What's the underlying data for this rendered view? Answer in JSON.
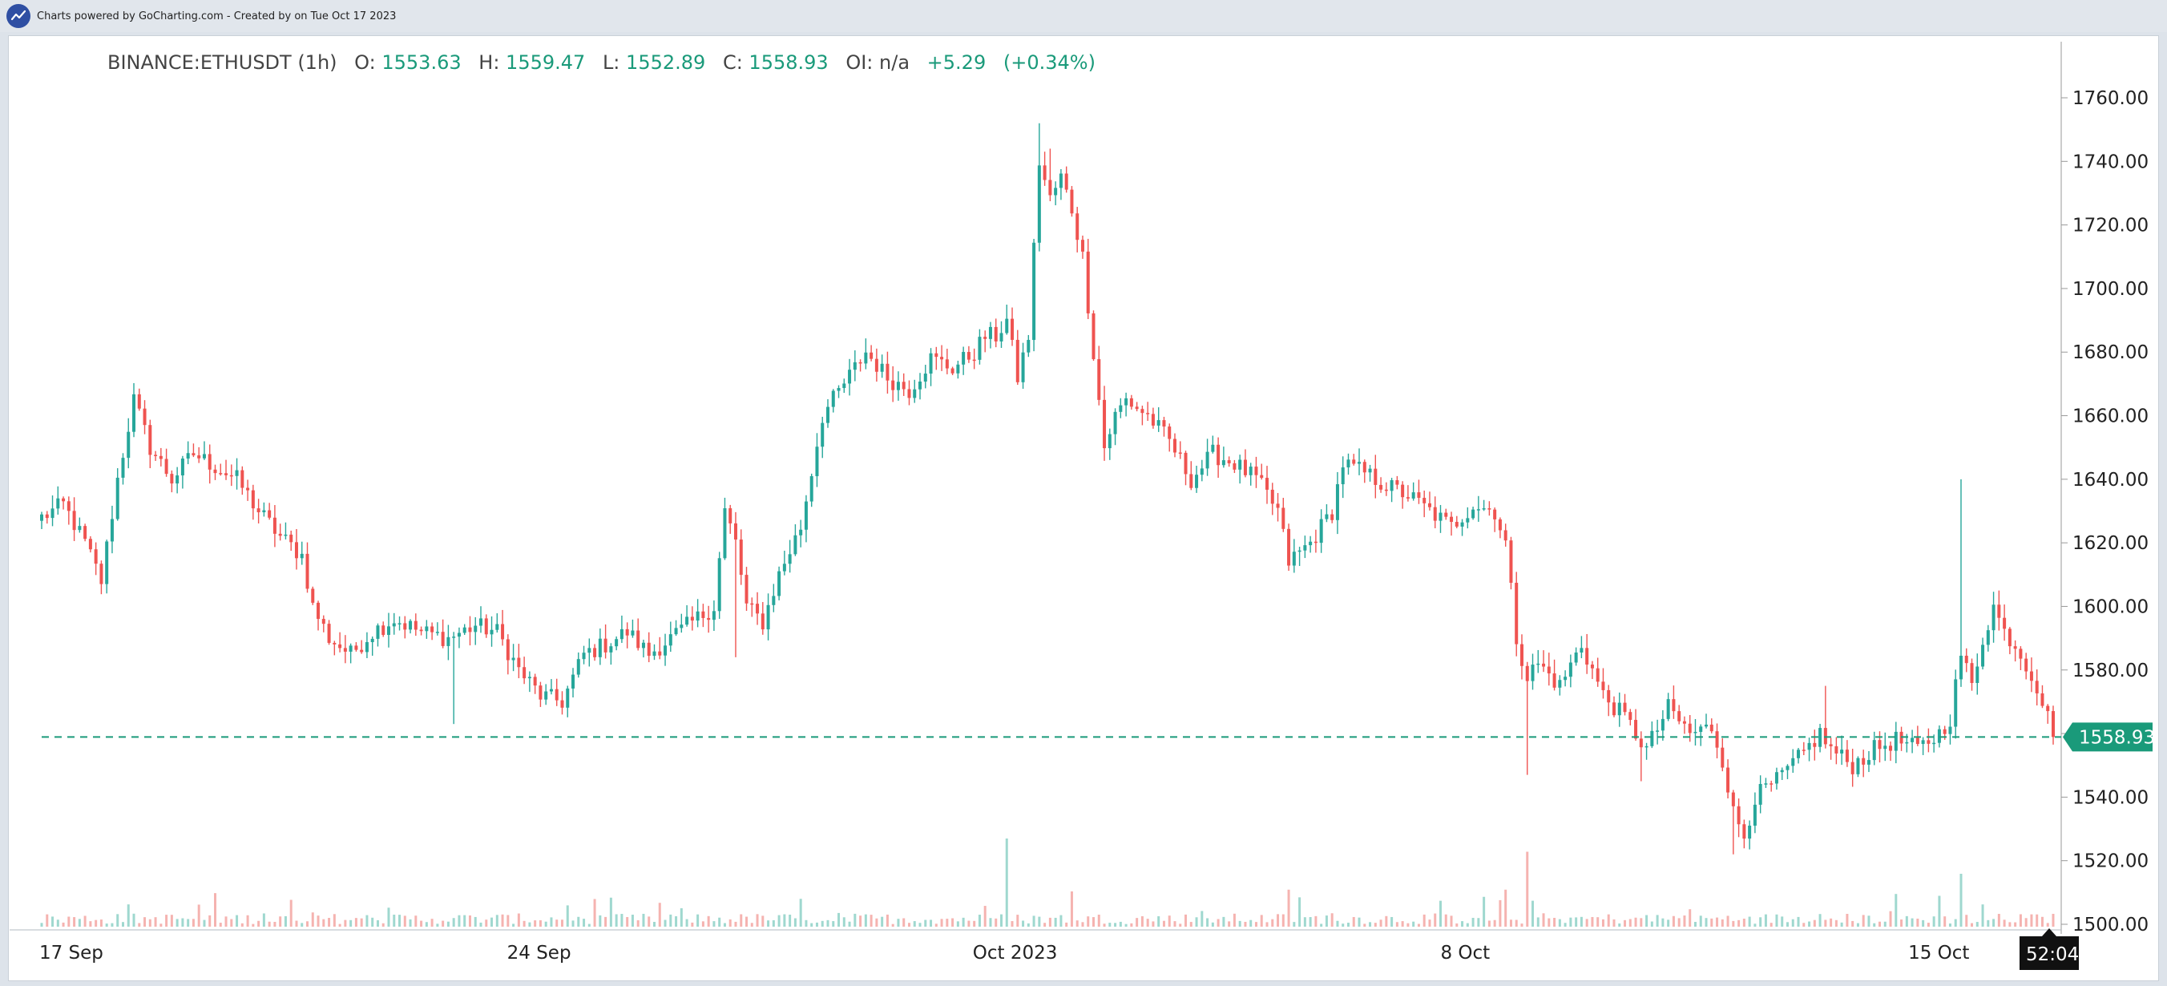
{
  "header": {
    "credit_text": "Charts powered by GoCharting.com - Created by  on Tue Oct 17 2023",
    "logo_icon": "trend-line-icon"
  },
  "legend": {
    "symbol": "BINANCE:ETHUSDT (1h)",
    "open_label": "O:",
    "open": "1553.63",
    "high_label": "H:",
    "high": "1559.47",
    "low_label": "L:",
    "low": "1552.89",
    "close_label": "C:",
    "close": "1558.93",
    "oi_label": "OI:",
    "oi": "n/a",
    "change": "+5.29",
    "change_pct": "(+0.34%)"
  },
  "chart_data": {
    "type": "candlestick",
    "title": "",
    "xlabel": "",
    "ylabel": "",
    "ylim": [
      1498,
      1772
    ],
    "y_ticks": [
      "1500.00",
      "1520.00",
      "1540.00",
      "1560.00",
      "1580.00",
      "1600.00",
      "1620.00",
      "1640.00",
      "1660.00",
      "1680.00",
      "1700.00",
      "1720.00",
      "1740.00",
      "1760.00"
    ],
    "x_ticks": [
      {
        "label": "17 Sep",
        "pos": 0.016
      },
      {
        "label": "24 Sep",
        "pos": 0.244
      },
      {
        "label": "Oct 2023",
        "pos": 0.471
      },
      {
        "label": "8 Oct",
        "pos": 0.699
      },
      {
        "label": "15 Oct",
        "pos": 0.927
      }
    ],
    "last_price": 1558.93,
    "last_price_label": "1558.93",
    "countdown": "52:04",
    "colors": {
      "up": "#26a69a",
      "down": "#ef5350",
      "up_volume": "#9fd8cf",
      "down_volume": "#f5b3b0"
    },
    "close_path": [
      [
        0,
        1628
      ],
      [
        4,
        1632
      ],
      [
        8,
        1620
      ],
      [
        11,
        1608
      ],
      [
        14,
        1640
      ],
      [
        17,
        1665
      ],
      [
        20,
        1650
      ],
      [
        24,
        1640
      ],
      [
        28,
        1648
      ],
      [
        32,
        1644
      ],
      [
        36,
        1640
      ],
      [
        40,
        1630
      ],
      [
        44,
        1622
      ],
      [
        48,
        1616
      ],
      [
        50,
        1600
      ],
      [
        53,
        1590
      ],
      [
        57,
        1585
      ],
      [
        61,
        1592
      ],
      [
        65,
        1596
      ],
      [
        70,
        1592
      ],
      [
        75,
        1590
      ],
      [
        80,
        1594
      ],
      [
        84,
        1592
      ],
      [
        88,
        1580
      ],
      [
        92,
        1572
      ],
      [
        96,
        1570
      ],
      [
        100,
        1585
      ],
      [
        104,
        1588
      ],
      [
        108,
        1592
      ],
      [
        112,
        1585
      ],
      [
        116,
        1590
      ],
      [
        120,
        1595
      ],
      [
        124,
        1600
      ],
      [
        126,
        1630
      ],
      [
        128,
        1620
      ],
      [
        130,
        1600
      ],
      [
        133,
        1595
      ],
      [
        136,
        1610
      ],
      [
        140,
        1625
      ],
      [
        144,
        1660
      ],
      [
        148,
        1670
      ],
      [
        152,
        1680
      ],
      [
        156,
        1672
      ],
      [
        160,
        1668
      ],
      [
        164,
        1678
      ],
      [
        168,
        1675
      ],
      [
        172,
        1680
      ],
      [
        174,
        1685
      ],
      [
        176,
        1685
      ],
      [
        178,
        1690
      ],
      [
        180,
        1672
      ],
      [
        182,
        1685
      ],
      [
        184,
        1740
      ],
      [
        186,
        1728
      ],
      [
        188,
        1735
      ],
      [
        190,
        1725
      ],
      [
        192,
        1710
      ],
      [
        194,
        1680
      ],
      [
        196,
        1650
      ],
      [
        198,
        1660
      ],
      [
        200,
        1665
      ],
      [
        204,
        1660
      ],
      [
        208,
        1652
      ],
      [
        212,
        1640
      ],
      [
        216,
        1648
      ],
      [
        220,
        1645
      ],
      [
        224,
        1640
      ],
      [
        228,
        1630
      ],
      [
        230,
        1614
      ],
      [
        234,
        1620
      ],
      [
        238,
        1630
      ],
      [
        240,
        1645
      ],
      [
        244,
        1642
      ],
      [
        248,
        1638
      ],
      [
        252,
        1635
      ],
      [
        256,
        1630
      ],
      [
        260,
        1625
      ],
      [
        264,
        1632
      ],
      [
        268,
        1630
      ],
      [
        270,
        1620
      ],
      [
        272,
        1590
      ],
      [
        274,
        1578
      ],
      [
        276,
        1582
      ],
      [
        280,
        1575
      ],
      [
        284,
        1588
      ],
      [
        288,
        1572
      ],
      [
        292,
        1565
      ],
      [
        296,
        1555
      ],
      [
        300,
        1568
      ],
      [
        304,
        1560
      ],
      [
        308,
        1562
      ],
      [
        310,
        1552
      ],
      [
        312,
        1535
      ],
      [
        314,
        1528
      ],
      [
        316,
        1540
      ],
      [
        320,
        1545
      ],
      [
        324,
        1552
      ],
      [
        328,
        1560
      ],
      [
        330,
        1555
      ],
      [
        334,
        1550
      ],
      [
        338,
        1555
      ],
      [
        342,
        1558
      ],
      [
        346,
        1555
      ],
      [
        350,
        1560
      ],
      [
        352,
        1565
      ],
      [
        354,
        1585
      ],
      [
        356,
        1575
      ],
      [
        358,
        1590
      ],
      [
        360,
        1600
      ],
      [
        362,
        1592
      ],
      [
        364,
        1588
      ],
      [
        366,
        1582
      ],
      [
        368,
        1575
      ],
      [
        370,
        1565
      ],
      [
        371,
        1558.93
      ]
    ],
    "spikes": [
      {
        "i": 76,
        "low": 1563
      },
      {
        "i": 128,
        "low": 1584
      },
      {
        "i": 184,
        "high": 1752
      },
      {
        "i": 186,
        "high": 1744
      },
      {
        "i": 274,
        "low": 1547
      },
      {
        "i": 295,
        "low": 1545
      },
      {
        "i": 312,
        "low": 1522
      },
      {
        "i": 329,
        "high": 1575
      },
      {
        "i": 354,
        "high": 1640
      },
      {
        "i": 361,
        "high": 1605
      }
    ],
    "volume_spikes": [
      {
        "i": 178,
        "v": 1.0
      },
      {
        "i": 274,
        "v": 0.85
      },
      {
        "i": 270,
        "v": 0.42
      },
      {
        "i": 354,
        "v": 0.6
      },
      {
        "i": 350,
        "v": 0.35
      },
      {
        "i": 190,
        "v": 0.4
      },
      {
        "i": 230,
        "v": 0.42
      }
    ],
    "candle_count": 372
  }
}
